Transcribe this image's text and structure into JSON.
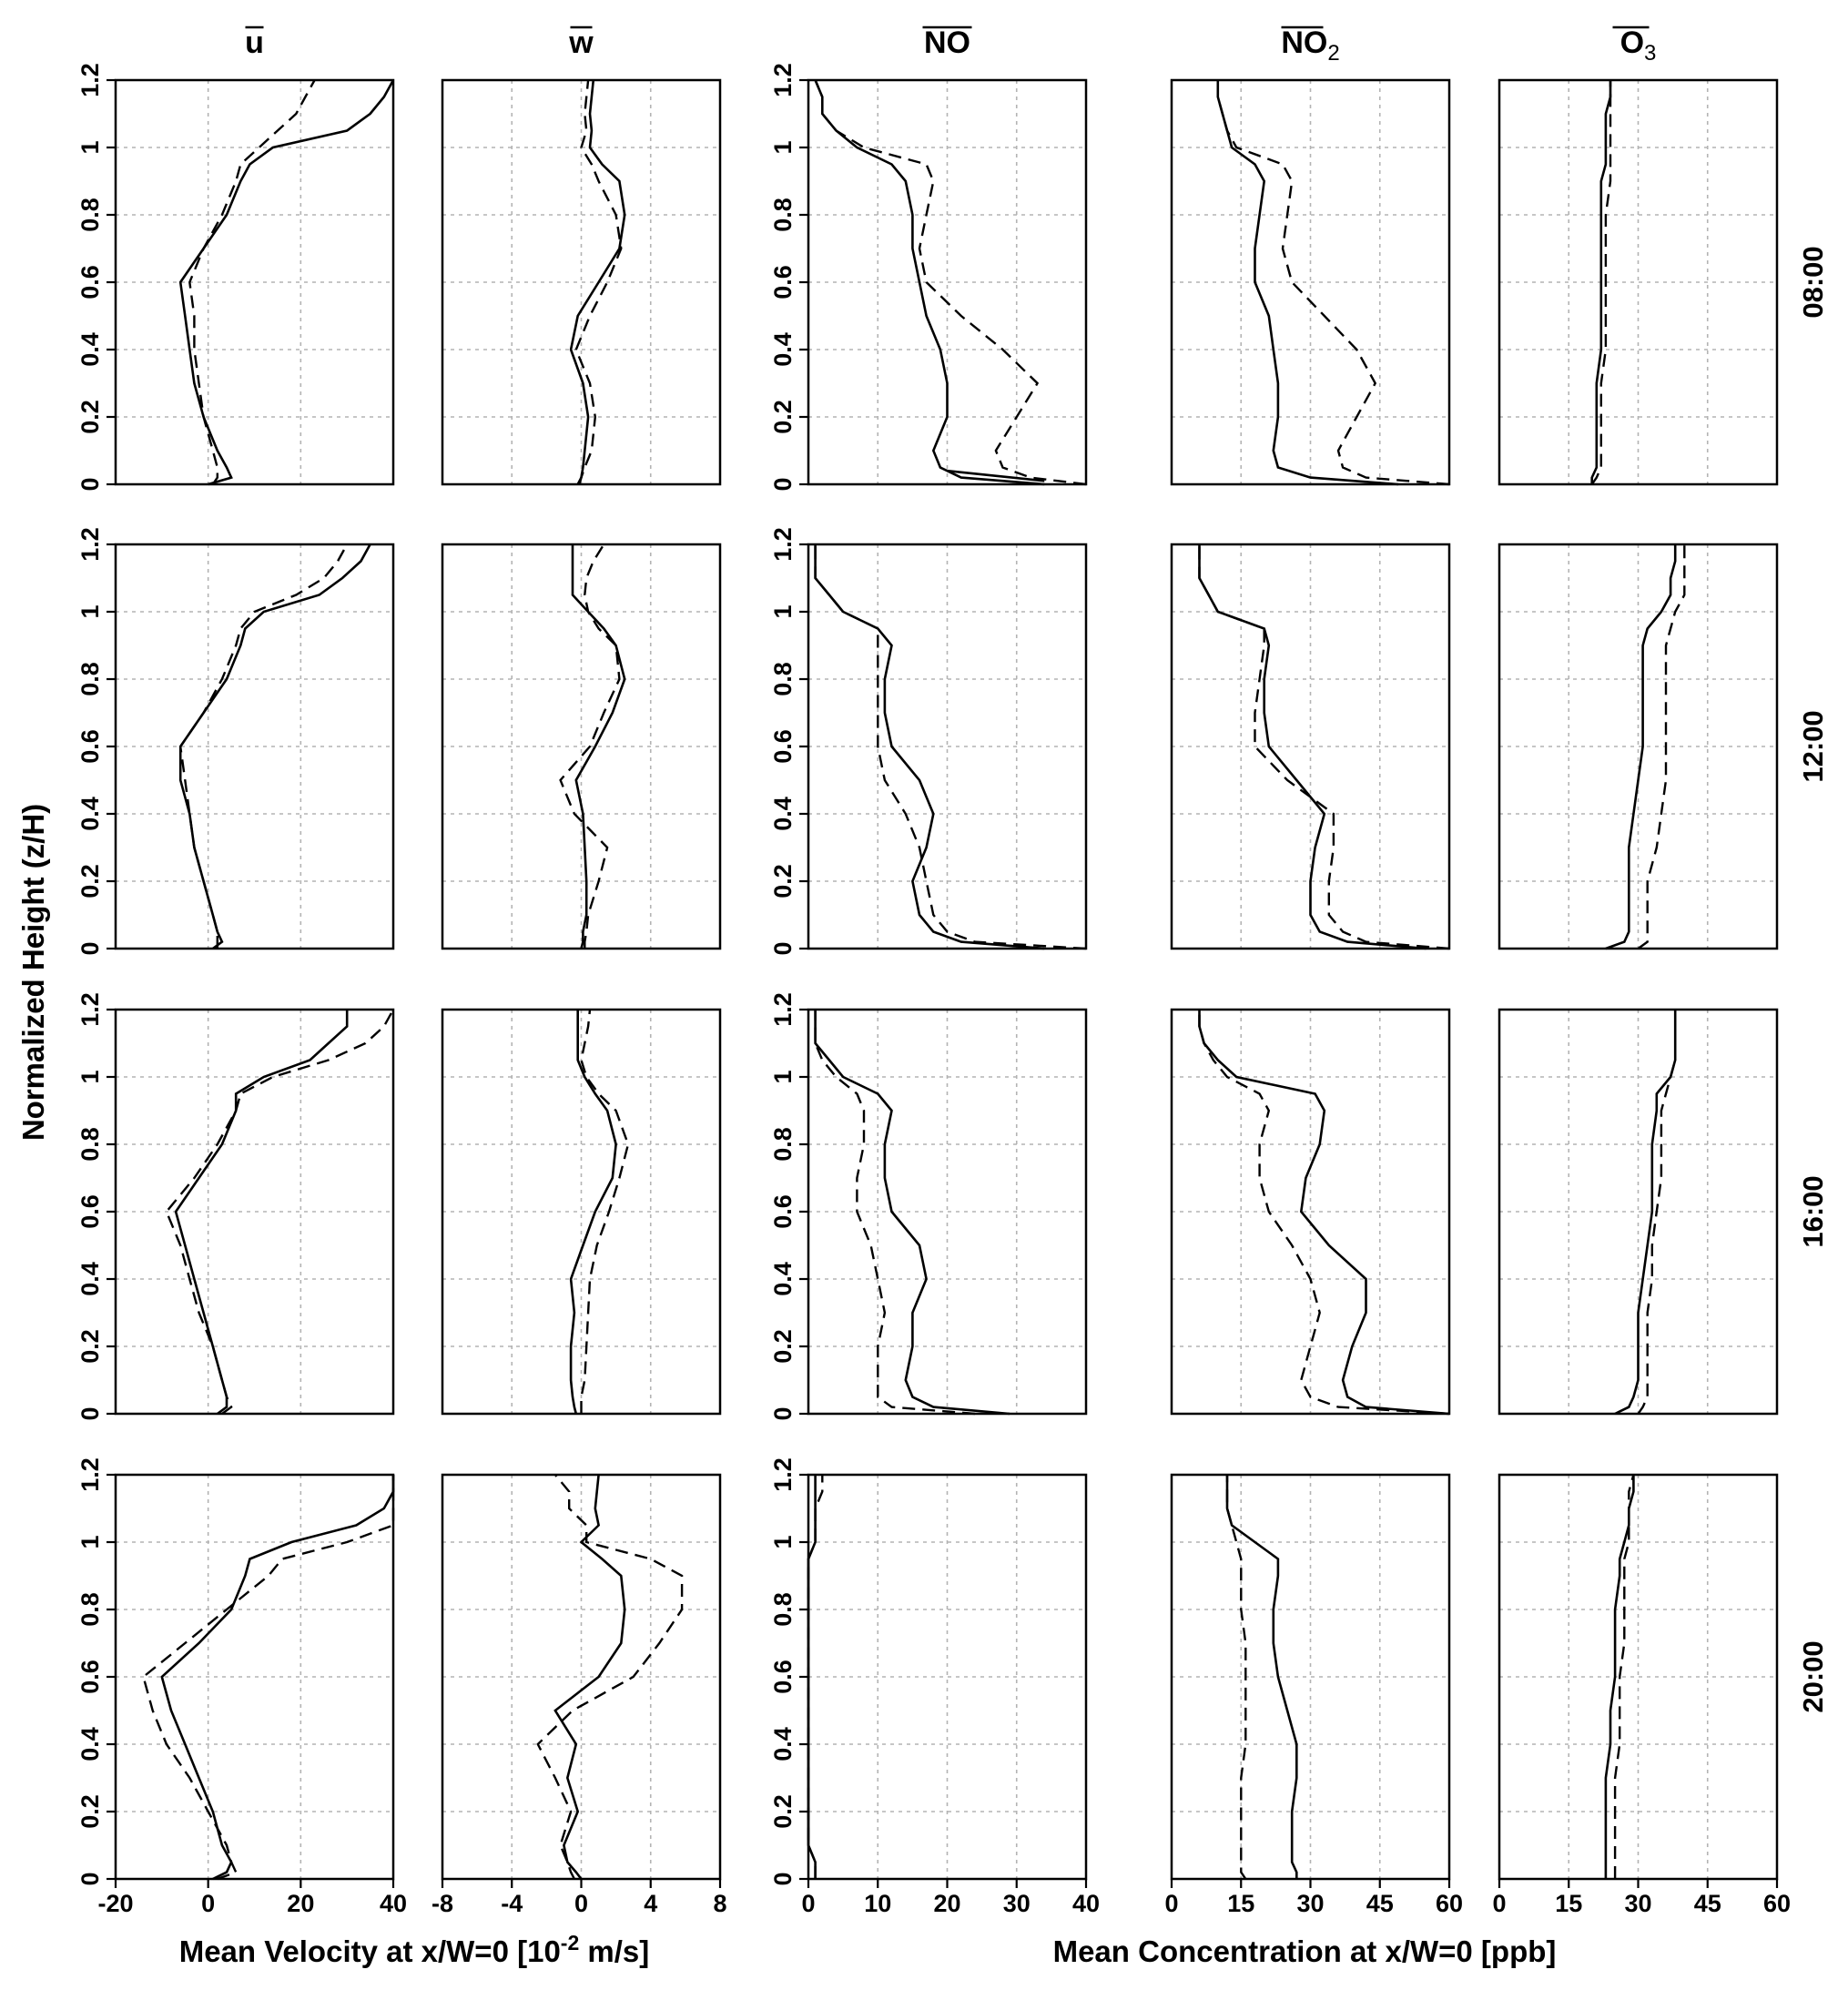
{
  "chart_data": {
    "type": "line",
    "orientation": "profiles (x = quantity, y = normalized height)",
    "ylabel": "Normalized Height (z/H)",
    "ylim": [
      0,
      1.2
    ],
    "yticks": [
      0,
      0.2,
      0.4,
      0.6,
      0.8,
      1,
      1.2
    ],
    "ytick_labels": [
      "0",
      "0.2",
      "0.4",
      "0.6",
      "0.8",
      "1",
      "1.2"
    ],
    "velocity_xlabel": {
      "pre": "Mean Velocity at x/W=0 [10",
      "sup": "-2",
      "post": " m/s]"
    },
    "concentration_xlabel": "Mean Concentration at x/W=0 [ppb]",
    "grid": true,
    "line_styles": [
      "solid",
      "dashed"
    ],
    "rows": [
      "08:00",
      "12:00",
      "16:00",
      "20:00"
    ],
    "columns": [
      {
        "key": "u",
        "title": "u",
        "sub": "",
        "xlim": [
          -20,
          40
        ],
        "xticks": [
          -20,
          0,
          20,
          40
        ],
        "xtick_labels": [
          "-20",
          "0",
          "20",
          "40"
        ]
      },
      {
        "key": "w",
        "title": "w",
        "sub": "",
        "xlim": [
          -8,
          8
        ],
        "xticks": [
          -8,
          -4,
          0,
          4,
          8
        ],
        "xtick_labels": [
          "-8",
          "-4",
          "0",
          "4",
          "8"
        ]
      },
      {
        "key": "no",
        "title": "NO",
        "sub": "",
        "xlim": [
          0,
          40
        ],
        "xticks": [
          0,
          10,
          20,
          30,
          40
        ],
        "xtick_labels": [
          "0",
          "10",
          "20",
          "30",
          "40"
        ]
      },
      {
        "key": "no2",
        "title": "NO",
        "sub": "2",
        "xlim": [
          0,
          60
        ],
        "xticks": [
          0,
          15,
          30,
          45,
          60
        ],
        "xtick_labels": [
          "0",
          "15",
          "30",
          "45",
          "60"
        ]
      },
      {
        "key": "o3",
        "title": "O",
        "sub": "3",
        "xlim": [
          0,
          60
        ],
        "xticks": [
          0,
          15,
          30,
          45,
          60
        ],
        "xtick_labels": [
          "0",
          "15",
          "30",
          "45",
          "60"
        ]
      }
    ],
    "z": [
      0,
      0.02,
      0.05,
      0.1,
      0.2,
      0.3,
      0.4,
      0.5,
      0.6,
      0.7,
      0.8,
      0.9,
      0.95,
      1.0,
      1.05,
      1.1,
      1.15,
      1.2
    ],
    "panels": {
      "08:00": {
        "u": {
          "solid": [
            0,
            5,
            4,
            2,
            -1,
            -3,
            -4,
            -5,
            -6,
            -1,
            4,
            7,
            9,
            14,
            30,
            35,
            38,
            40
          ],
          "dashed": [
            1,
            2,
            2,
            1,
            -1,
            -2,
            -3,
            -3,
            -4,
            -1,
            3,
            6,
            7,
            11,
            15,
            19,
            21,
            23
          ]
        },
        "w": {
          "solid": [
            -0.2,
            0.0,
            0.1,
            0.2,
            0.4,
            0.1,
            -0.6,
            -0.2,
            1.0,
            2.2,
            2.5,
            2.2,
            1.2,
            0.5,
            0.6,
            0.5,
            0.6,
            0.7
          ],
          "dashed": [
            -0.1,
            0.0,
            0.2,
            0.6,
            0.8,
            0.5,
            -0.3,
            0.5,
            1.5,
            2.3,
            2.0,
            1.0,
            0.6,
            0.0,
            0.3,
            0.2,
            0.3,
            0.4
          ]
        },
        "no": {
          "solid": [
            34,
            22,
            19,
            18,
            20,
            20,
            19,
            17,
            16,
            15,
            15,
            14,
            12,
            7,
            4,
            2,
            2,
            1
          ],
          "dashed": [
            40,
            32,
            28,
            27,
            30,
            33,
            28,
            22,
            17,
            16,
            17,
            18,
            17,
            8,
            4,
            2,
            2,
            1
          ],
          "connector": [
            [
              20,
              0.04
            ],
            [
              34,
              0.01
            ]
          ]
        },
        "no2": {
          "solid": [
            49,
            30,
            23,
            22,
            23,
            23,
            22,
            21,
            18,
            18,
            19,
            20,
            18,
            13,
            12,
            11,
            10,
            10
          ],
          "dashed": [
            60,
            42,
            37,
            36,
            40,
            44,
            40,
            33,
            26,
            24,
            25,
            26,
            24,
            14,
            12,
            11,
            10,
            10
          ]
        },
        "o3": {
          "solid": [
            20,
            20,
            21,
            21,
            21,
            21,
            22,
            22,
            22,
            22,
            22,
            22,
            23,
            23,
            23,
            23,
            24,
            24
          ],
          "dashed": [
            20,
            21,
            22,
            22,
            22,
            22,
            23,
            23,
            23,
            23,
            23,
            24,
            24,
            24,
            24,
            24,
            24,
            24
          ]
        }
      },
      "12:00": {
        "u": {
          "solid": [
            1,
            3,
            2,
            1,
            -1,
            -3,
            -4,
            -6,
            -6,
            -1,
            4,
            7,
            8,
            12,
            24,
            29,
            33,
            35
          ],
          "dashed": [
            2,
            2,
            2,
            1,
            -1,
            -3,
            -4,
            -5,
            -6,
            -1,
            3,
            6,
            7,
            10,
            19,
            25,
            28,
            30
          ]
        },
        "w": {
          "solid": [
            0.0,
            0.1,
            0.1,
            0.3,
            0.3,
            0.2,
            0.1,
            -0.3,
            0.8,
            1.8,
            2.5,
            2.0,
            1.3,
            0.4,
            -0.5,
            -0.5,
            -0.5,
            -0.5
          ],
          "dashed": [
            0.2,
            0.2,
            0.3,
            0.4,
            1.0,
            1.5,
            -0.4,
            -1.2,
            0.5,
            1.3,
            2.2,
            2.0,
            1.0,
            0.4,
            0.2,
            0.3,
            0.7,
            1.3
          ]
        },
        "no": {
          "solid": [
            34,
            22,
            18,
            16,
            15,
            17,
            18,
            16,
            12,
            11,
            11,
            12,
            10,
            5,
            3,
            1,
            1,
            1
          ],
          "dashed": [
            40,
            24,
            20,
            18,
            17,
            16,
            14,
            11,
            10,
            10,
            10,
            10,
            10,
            5,
            3,
            1,
            1,
            1
          ]
        },
        "no2": {
          "solid": [
            55,
            38,
            32,
            30,
            30,
            31,
            33,
            27,
            21,
            20,
            20,
            21,
            20,
            10,
            8,
            6,
            6,
            6
          ],
          "dashed": [
            60,
            42,
            37,
            34,
            34,
            35,
            35,
            25,
            18,
            18,
            19,
            20,
            20,
            10,
            8,
            6,
            6,
            6
          ]
        },
        "o3": {
          "solid": [
            23,
            27,
            28,
            28,
            28,
            28,
            29,
            30,
            31,
            31,
            31,
            31,
            32,
            35,
            37,
            37,
            38,
            38
          ],
          "dashed": [
            30,
            32,
            32,
            32,
            32,
            34,
            35,
            36,
            36,
            36,
            36,
            36,
            37,
            38,
            40,
            40,
            40,
            40
          ]
        }
      },
      "16:00": {
        "u": {
          "solid": [
            2,
            4,
            4,
            3,
            1,
            -1,
            -3,
            -5,
            -7,
            -2,
            3,
            6,
            6,
            12,
            22,
            26,
            30,
            30
          ],
          "dashed": [
            3,
            5,
            4,
            3,
            1,
            -2,
            -4,
            -6,
            -9,
            -3,
            2,
            6,
            7,
            14,
            26,
            34,
            38,
            40
          ]
        },
        "w": {
          "solid": [
            -0.3,
            -0.4,
            -0.5,
            -0.6,
            -0.6,
            -0.4,
            -0.6,
            0.1,
            0.8,
            1.8,
            2.0,
            1.5,
            0.8,
            0.2,
            -0.2,
            -0.2,
            -0.2,
            -0.2
          ],
          "dashed": [
            0.0,
            0.0,
            0.0,
            0.2,
            0.3,
            0.4,
            0.5,
            0.9,
            1.6,
            2.2,
            2.7,
            2.0,
            1.0,
            0.3,
            0.0,
            0.2,
            0.4,
            0.5
          ]
        },
        "no": {
          "solid": [
            29,
            18,
            15,
            14,
            15,
            15,
            17,
            16,
            12,
            11,
            11,
            12,
            10,
            5,
            3,
            1,
            1,
            1
          ],
          "dashed": [
            24,
            12,
            10,
            10,
            10,
            11,
            10,
            9,
            7,
            7,
            8,
            8,
            7,
            4,
            2,
            1,
            1,
            1
          ]
        },
        "no2": {
          "solid": [
            60,
            42,
            38,
            37,
            39,
            42,
            42,
            34,
            28,
            29,
            32,
            33,
            31,
            14,
            10,
            7,
            6,
            6
          ],
          "dashed": [
            60,
            36,
            30,
            28,
            30,
            32,
            30,
            26,
            21,
            19,
            19,
            21,
            19,
            12,
            9,
            7,
            6,
            6
          ]
        },
        "o3": {
          "solid": [
            25,
            28,
            29,
            30,
            30,
            30,
            31,
            32,
            33,
            33,
            33,
            34,
            34,
            37,
            38,
            38,
            38,
            38
          ],
          "dashed": [
            30,
            31,
            32,
            32,
            32,
            32,
            33,
            33,
            34,
            35,
            35,
            35,
            36,
            37,
            38,
            38,
            38,
            38
          ]
        }
      },
      "20:00": {
        "u": {
          "solid": [
            1,
            4,
            5,
            3,
            1,
            -2,
            -5,
            -8,
            -10,
            -2,
            5,
            8,
            9,
            18,
            32,
            38,
            40,
            40
          ],
          "dashed": [
            2,
            6,
            5,
            4,
            0,
            -4,
            -9,
            -12,
            -14,
            -5,
            4,
            13,
            16,
            30,
            40,
            40,
            40,
            40
          ]
        },
        "w": {
          "solid": [
            0.0,
            -0.3,
            -0.8,
            -1.0,
            -0.2,
            -0.8,
            -0.3,
            -1.5,
            1.0,
            2.3,
            2.5,
            2.3,
            1.2,
            0.0,
            1.0,
            0.8,
            0.9,
            1.0
          ],
          "dashed": [
            -0.4,
            -0.6,
            -0.8,
            -1.2,
            -0.6,
            -1.5,
            -2.5,
            -0.5,
            3.0,
            4.5,
            5.8,
            5.8,
            4.0,
            0.3,
            0.3,
            -0.7,
            -0.7,
            -1.5
          ]
        },
        "no": {
          "solid": [
            1,
            1,
            1,
            0,
            0,
            0,
            0,
            0,
            0,
            0,
            0,
            0,
            0,
            1,
            1,
            1,
            1,
            1
          ],
          "dashed": [
            1,
            1,
            1,
            0,
            0,
            0,
            0,
            0,
            0,
            0,
            0,
            0,
            0,
            1,
            1,
            1,
            2,
            2
          ]
        },
        "no2": {
          "solid": [
            27,
            27,
            26,
            26,
            26,
            27,
            27,
            25,
            23,
            22,
            22,
            23,
            23,
            18,
            13,
            12,
            12,
            12
          ],
          "dashed": [
            16,
            15,
            15,
            15,
            15,
            15,
            16,
            16,
            16,
            16,
            15,
            15,
            15,
            14,
            13,
            12,
            12,
            12
          ]
        },
        "o3": {
          "solid": [
            23,
            23,
            23,
            23,
            23,
            23,
            24,
            24,
            25,
            25,
            25,
            26,
            26,
            27,
            28,
            28,
            29,
            29
          ],
          "dashed": [
            25,
            25,
            25,
            25,
            25,
            25,
            26,
            26,
            26,
            27,
            27,
            27,
            27,
            28,
            28,
            28,
            28,
            29
          ]
        }
      }
    }
  }
}
